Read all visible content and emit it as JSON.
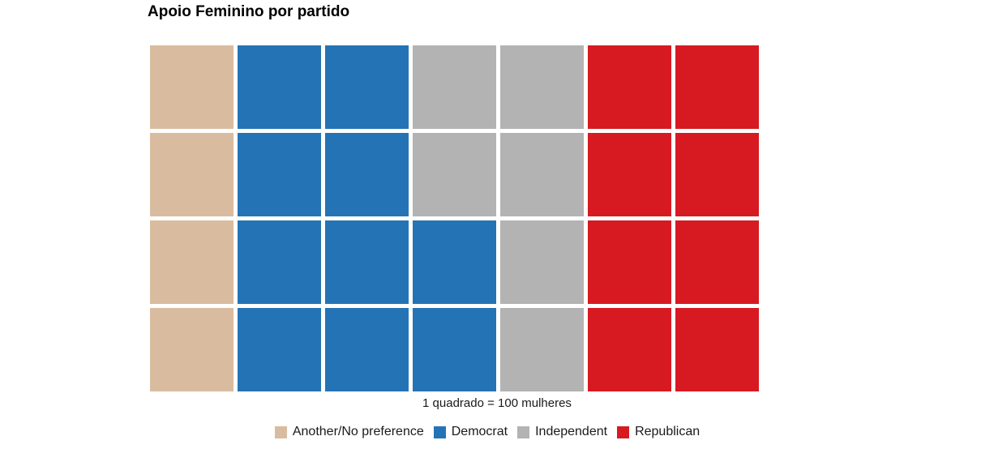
{
  "chart_data": {
    "type": "waffle",
    "title": "Apoio Feminino por partido",
    "caption": "1 quadrado = 100 mulheres",
    "units_per_square": 100,
    "rows": 4,
    "fill_order": "column-wise from bottom-left",
    "grid": false,
    "legend_position": "bottom",
    "series": [
      {
        "name": "Another/No preference",
        "squares": 4,
        "color": "#d9bc9f"
      },
      {
        "name": "Democrat",
        "squares": 10,
        "color": "#2474b5"
      },
      {
        "name": "Independent",
        "squares": 6,
        "color": "#b3b3b3"
      },
      {
        "name": "Republican",
        "squares": 8,
        "color": "#d71a21"
      }
    ]
  }
}
